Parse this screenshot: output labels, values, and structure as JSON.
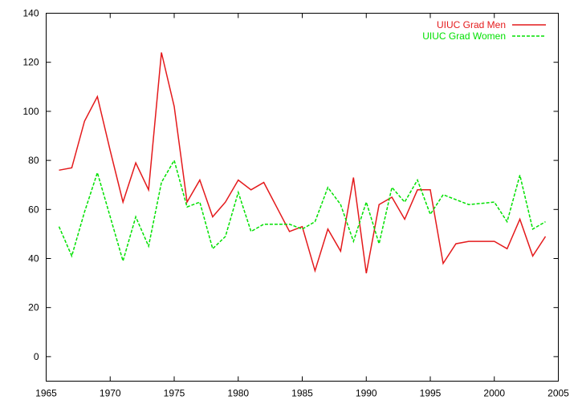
{
  "chart_data": {
    "type": "line",
    "title": "",
    "xlabel": "",
    "ylabel": "",
    "xlim": [
      1965,
      2005
    ],
    "ylim": [
      -10,
      140
    ],
    "x_ticks": [
      1965,
      1970,
      1975,
      1980,
      1985,
      1990,
      1995,
      2000,
      2005
    ],
    "y_ticks": [
      0,
      20,
      40,
      60,
      80,
      100,
      120,
      140
    ],
    "grid": false,
    "legend_position": "top-right",
    "series": [
      {
        "name": "UIUC Grad Men",
        "color": "#e41a1c",
        "dash": "solid",
        "x": [
          1966,
          1967,
          1968,
          1969,
          1970,
          1971,
          1972,
          1973,
          1974,
          1975,
          1976,
          1977,
          1978,
          1979,
          1980,
          1981,
          1982,
          1983,
          1984,
          1985,
          1986,
          1987,
          1988,
          1989,
          1990,
          1991,
          1992,
          1993,
          1994,
          1995,
          1996,
          1997,
          1998,
          1999,
          2000,
          2001,
          2002,
          2003,
          2004
        ],
        "y": [
          76,
          77,
          96,
          106,
          84,
          63,
          79,
          68,
          124,
          102,
          63,
          72,
          57,
          63,
          72,
          68,
          71,
          61,
          51,
          53,
          35,
          52,
          43,
          73,
          34,
          62,
          65,
          56,
          68,
          68,
          38,
          46,
          47,
          47,
          47,
          44,
          56,
          41,
          49
        ]
      },
      {
        "name": "UIUC Grad Women",
        "color": "#00e000",
        "dash": "dashed",
        "x": [
          1966,
          1967,
          1968,
          1969,
          1970,
          1971,
          1972,
          1973,
          1974,
          1975,
          1976,
          1977,
          1978,
          1979,
          1980,
          1981,
          1982,
          1983,
          1984,
          1985,
          1986,
          1987,
          1988,
          1989,
          1990,
          1991,
          1992,
          1993,
          1994,
          1995,
          1996,
          1997,
          1998,
          1999,
          2000,
          2001,
          2002,
          2003,
          2004
        ],
        "y": [
          53,
          41,
          59,
          75,
          57,
          39,
          57,
          45,
          71,
          80,
          61,
          63,
          44,
          49,
          67,
          51,
          54,
          54,
          54,
          52,
          55,
          69,
          62,
          47,
          63,
          46,
          69,
          63,
          72,
          58,
          66,
          64,
          62,
          62.5,
          63,
          55,
          74,
          52,
          55
        ]
      }
    ]
  }
}
